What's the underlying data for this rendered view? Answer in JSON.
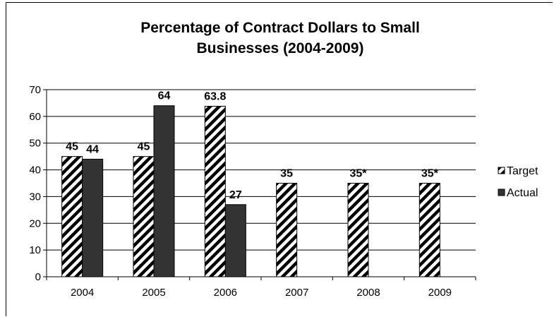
{
  "chart_data": {
    "type": "bar",
    "title_lines": [
      "Percentage of Contract Dollars to Small",
      "Businesses (2004-2009)"
    ],
    "categories": [
      "2004",
      "2005",
      "2006",
      "2007",
      "2008",
      "2009"
    ],
    "series": [
      {
        "name": "Target",
        "values": [
          45,
          45,
          63.8,
          35,
          35,
          35
        ],
        "labels": [
          "45",
          "45",
          "63.8",
          "35",
          "35*",
          "35*"
        ],
        "pattern": "diagonal-hatch",
        "color": "#000000"
      },
      {
        "name": "Actual",
        "values": [
          44,
          64,
          27,
          null,
          null,
          null
        ],
        "labels": [
          "44",
          "64",
          "27",
          "",
          "",
          ""
        ],
        "pattern": "solid",
        "color": "#333333"
      }
    ],
    "ylim": [
      0,
      70
    ],
    "yticks": [
      "0",
      "10",
      "20",
      "30",
      "40",
      "50",
      "60",
      "70"
    ],
    "grid": true,
    "legend_position": "right"
  }
}
